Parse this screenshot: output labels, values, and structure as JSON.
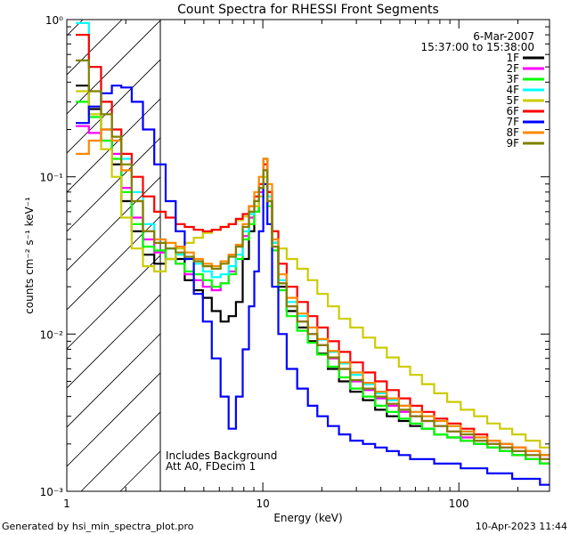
{
  "chart_data": {
    "type": "line",
    "title": "Count Spectra for RHESSI Front Segments",
    "xlabel": "Energy (keV)",
    "ylabel": "counts cm⁻² s⁻¹ keV⁻¹",
    "xscale": "log",
    "yscale": "log",
    "xlim": [
      1,
      290
    ],
    "ylim": [
      0.001,
      1.0
    ],
    "xticks": [
      {
        "value": 1,
        "label": "1"
      },
      {
        "value": 10,
        "label": "10"
      },
      {
        "value": 100,
        "label": "100"
      }
    ],
    "yticks": [
      {
        "value": 1,
        "label": "10⁰"
      },
      {
        "value": 0.1,
        "label": "10⁻¹"
      },
      {
        "value": 0.01,
        "label": "10⁻²"
      },
      {
        "value": 0.001,
        "label": "10⁻³"
      }
    ],
    "legend_header": [
      "6-Mar-2007",
      "15:37:00 to 15:38:00"
    ],
    "legend_position": "top-right",
    "excluded_region": {
      "x_min": 1,
      "x_max": 3,
      "pattern": "hatched"
    },
    "annotations": [
      "Includes Background",
      "Att A0, FDecim 1"
    ],
    "x": [
      1.2,
      1.4,
      1.6,
      1.8,
      2.0,
      2.3,
      2.6,
      3.0,
      3.4,
      3.8,
      4.2,
      4.7,
      5.2,
      5.8,
      6.4,
      7.0,
      7.6,
      8.2,
      8.8,
      9.3,
      9.8,
      10.3,
      10.8,
      11.5,
      12.5,
      14,
      16,
      18,
      20,
      23,
      26,
      30,
      35,
      40,
      46,
      53,
      60,
      70,
      80,
      95,
      110,
      130,
      150,
      175,
      200,
      240,
      280
    ],
    "series": [
      {
        "name": "1F",
        "color": "#000000",
        "values": [
          0.38,
          0.27,
          0.2,
          0.12,
          0.07,
          0.045,
          0.032,
          0.028,
          0.035,
          0.03,
          0.022,
          0.019,
          0.017,
          0.014,
          0.012,
          0.013,
          0.016,
          0.03,
          0.045,
          0.06,
          0.085,
          0.13,
          0.08,
          0.038,
          0.02,
          0.014,
          0.011,
          0.009,
          0.0075,
          0.006,
          0.005,
          0.0043,
          0.0038,
          0.0033,
          0.003,
          0.0028,
          0.0026,
          0.0025,
          0.0023,
          0.0022,
          0.0021,
          0.002,
          0.0019,
          0.0018,
          0.0017,
          0.0016,
          0.0015
        ]
      },
      {
        "name": "2F",
        "color": "#ff00ff",
        "values": [
          0.21,
          0.19,
          0.17,
          0.14,
          0.085,
          0.055,
          0.04,
          0.033,
          0.03,
          0.028,
          0.024,
          0.022,
          0.02,
          0.019,
          0.021,
          0.025,
          0.03,
          0.042,
          0.055,
          0.065,
          0.08,
          0.11,
          0.07,
          0.036,
          0.021,
          0.015,
          0.012,
          0.01,
          0.0085,
          0.007,
          0.006,
          0.005,
          0.0044,
          0.0039,
          0.0035,
          0.0032,
          0.003,
          0.0028,
          0.0026,
          0.0024,
          0.0022,
          0.0021,
          0.002,
          0.0019,
          0.0018,
          0.0017,
          0.0016
        ]
      },
      {
        "name": "3F",
        "color": "#00ff00",
        "values": [
          0.3,
          0.24,
          0.17,
          0.13,
          0.08,
          0.05,
          0.036,
          0.034,
          0.03,
          0.028,
          0.025,
          0.024,
          0.022,
          0.02,
          0.021,
          0.024,
          0.03,
          0.04,
          0.05,
          0.06,
          0.075,
          0.1,
          0.065,
          0.034,
          0.019,
          0.013,
          0.0105,
          0.0088,
          0.0074,
          0.0062,
          0.0053,
          0.0045,
          0.004,
          0.0035,
          0.0032,
          0.0029,
          0.0027,
          0.0025,
          0.0023,
          0.0022,
          0.0021,
          0.002,
          0.0019,
          0.0018,
          0.0017,
          0.0016,
          0.0015
        ]
      },
      {
        "name": "4F",
        "color": "#00ffff",
        "values": [
          0.95,
          0.5,
          0.3,
          0.2,
          0.13,
          0.08,
          0.05,
          0.04,
          0.035,
          0.032,
          0.03,
          0.028,
          0.025,
          0.023,
          0.024,
          0.027,
          0.032,
          0.045,
          0.058,
          0.07,
          0.09,
          0.12,
          0.075,
          0.038,
          0.022,
          0.016,
          0.013,
          0.011,
          0.0092,
          0.0077,
          0.0065,
          0.0055,
          0.0048,
          0.0042,
          0.0038,
          0.0035,
          0.0032,
          0.003,
          0.0028,
          0.0026,
          0.0024,
          0.0022,
          0.0021,
          0.002,
          0.0019,
          0.0018,
          0.0017
        ]
      },
      {
        "name": "5F",
        "color": "#cccc00",
        "values": [
          0.35,
          0.25,
          0.15,
          0.1,
          0.055,
          0.035,
          0.027,
          0.025,
          0.03,
          0.035,
          0.038,
          0.041,
          0.044,
          0.046,
          0.048,
          0.05,
          0.053,
          0.056,
          0.06,
          0.065,
          0.075,
          0.1,
          0.07,
          0.045,
          0.035,
          0.03,
          0.026,
          0.022,
          0.018,
          0.015,
          0.0125,
          0.011,
          0.0095,
          0.0082,
          0.0071,
          0.0062,
          0.0055,
          0.0048,
          0.0042,
          0.0037,
          0.0033,
          0.003,
          0.0027,
          0.0025,
          0.0023,
          0.0021,
          0.0019
        ]
      },
      {
        "name": "6F",
        "color": "#ff0000",
        "values": [
          0.8,
          0.5,
          0.3,
          0.2,
          0.14,
          0.1,
          0.075,
          0.06,
          0.055,
          0.05,
          0.048,
          0.046,
          0.045,
          0.046,
          0.048,
          0.05,
          0.054,
          0.058,
          0.065,
          0.075,
          0.09,
          0.12,
          0.08,
          0.045,
          0.028,
          0.02,
          0.016,
          0.013,
          0.011,
          0.009,
          0.0077,
          0.0066,
          0.0057,
          0.005,
          0.0044,
          0.0039,
          0.0035,
          0.0032,
          0.0029,
          0.0027,
          0.0025,
          0.0023,
          0.0021,
          0.002,
          0.0019,
          0.0018,
          0.0017
        ]
      },
      {
        "name": "7F",
        "color": "#0000ff",
        "values": [
          0.22,
          0.28,
          0.34,
          0.38,
          0.37,
          0.3,
          0.2,
          0.12,
          0.07,
          0.045,
          0.03,
          0.018,
          0.012,
          0.007,
          0.004,
          0.0025,
          0.004,
          0.008,
          0.015,
          0.025,
          0.045,
          0.09,
          0.05,
          0.02,
          0.01,
          0.006,
          0.0045,
          0.0035,
          0.003,
          0.0026,
          0.0023,
          0.0021,
          0.002,
          0.0019,
          0.0018,
          0.0017,
          0.0016,
          0.0016,
          0.0015,
          0.0015,
          0.0014,
          0.0014,
          0.0013,
          0.0013,
          0.0012,
          0.0012,
          0.0011
        ]
      },
      {
        "name": "8F",
        "color": "#ff8800",
        "values": [
          0.14,
          0.17,
          0.2,
          0.17,
          0.11,
          0.07,
          0.045,
          0.04,
          0.038,
          0.036,
          0.033,
          0.03,
          0.028,
          0.027,
          0.029,
          0.032,
          0.037,
          0.05,
          0.065,
          0.08,
          0.1,
          0.13,
          0.09,
          0.04,
          0.024,
          0.017,
          0.0135,
          0.011,
          0.0093,
          0.0078,
          0.0066,
          0.0057,
          0.0049,
          0.0043,
          0.0039,
          0.0035,
          0.0032,
          0.003,
          0.0028,
          0.0026,
          0.0024,
          0.0022,
          0.0021,
          0.002,
          0.0019,
          0.0018,
          0.0017
        ]
      },
      {
        "name": "9F",
        "color": "#808000",
        "values": [
          0.55,
          0.35,
          0.25,
          0.18,
          0.12,
          0.07,
          0.045,
          0.038,
          0.035,
          0.033,
          0.031,
          0.029,
          0.027,
          0.026,
          0.028,
          0.031,
          0.036,
          0.048,
          0.06,
          0.07,
          0.085,
          0.11,
          0.07,
          0.036,
          0.021,
          0.015,
          0.012,
          0.01,
          0.0085,
          0.0071,
          0.006,
          0.0051,
          0.0045,
          0.004,
          0.0036,
          0.0033,
          0.003,
          0.0028,
          0.0026,
          0.0024,
          0.0023,
          0.0021,
          0.002,
          0.0019,
          0.0018,
          0.0017,
          0.0016
        ]
      }
    ]
  },
  "footer": {
    "left": "Generated by hsi_min_spectra_plot.pro",
    "right": "10-Apr-2023 11:44"
  }
}
